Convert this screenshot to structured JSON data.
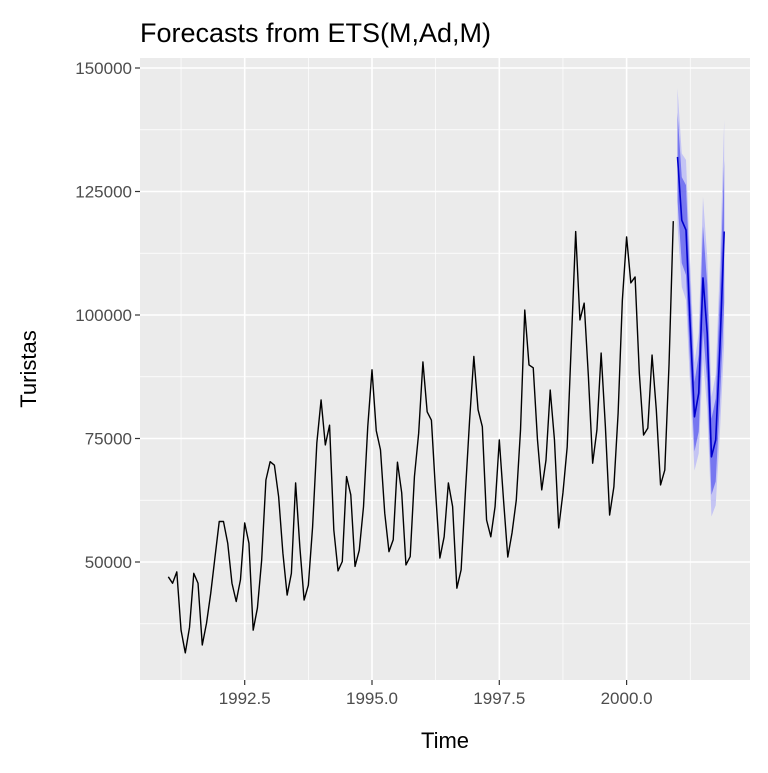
{
  "chart_data": {
    "type": "line",
    "title": "Forecasts from ETS(M,Ad,M)",
    "xlabel": "Time",
    "ylabel": "Turistas",
    "xlim": [
      1990.9,
      2002.05
    ],
    "ylim": [
      27000,
      152000
    ],
    "x_ticks": [
      1992.5,
      1995.0,
      1997.5,
      2000.0
    ],
    "x_tick_labels": [
      "1992.5",
      "1995.0",
      "1997.5",
      "2000.0"
    ],
    "y_ticks": [
      50000,
      75000,
      100000,
      125000,
      150000
    ],
    "y_tick_labels": [
      "50000",
      "75000",
      "100000",
      "125000",
      "150000"
    ],
    "grid": true,
    "colors": {
      "panel": "#ebebeb",
      "history": "#000000",
      "forecast": "#0000cc",
      "band80": "#7777f0",
      "band95": "#c4c4f4"
    },
    "history": {
      "start": 1991.0,
      "frequency": 12,
      "values": [
        47000,
        45700,
        48000,
        36200,
        31600,
        36800,
        47700,
        45700,
        33200,
        37600,
        43700,
        51000,
        58200,
        58200,
        53800,
        45700,
        42000,
        46400,
        57900,
        53800,
        36200,
        40700,
        50400,
        66600,
        70300,
        69600,
        63200,
        51800,
        43300,
        47700,
        66000,
        53000,
        42300,
        45300,
        57100,
        74100,
        82800,
        73700,
        77700,
        56500,
        48200,
        50100,
        67300,
        63600,
        49100,
        52400,
        61200,
        77400,
        88900,
        76600,
        72700,
        59900,
        52100,
        54500,
        70200,
        64000,
        49400,
        51100,
        67300,
        76100,
        90500,
        80400,
        78700,
        64000,
        50800,
        55100,
        66000,
        61200,
        44700,
        48400,
        64000,
        78700,
        91600,
        80800,
        77400,
        58500,
        55100,
        61200,
        74700,
        62500,
        51000,
        55900,
        62500,
        76700,
        101000,
        89900,
        89300,
        74700,
        64600,
        70600,
        84800,
        74700,
        56900,
        64000,
        73300,
        94900,
        116900,
        99000,
        102400,
        87500,
        70000,
        76700,
        92300,
        77400,
        59500,
        65200,
        80100,
        103000,
        115800,
        106500,
        107700,
        88200,
        75700,
        77100,
        91900,
        80800,
        65600,
        68600,
        90000,
        119000
      ]
    },
    "forecast": {
      "start": 2001.0,
      "frequency": 12,
      "mean": [
        132000,
        119200,
        117200,
        97600,
        79400,
        84200,
        107500,
        96300,
        71300,
        74700,
        93600,
        116900
      ],
      "lo80": [
        123000,
        110500,
        108100,
        89500,
        72400,
        76400,
        97000,
        86400,
        63600,
        66300,
        82600,
        102500
      ],
      "hi80": [
        141000,
        127900,
        126300,
        105700,
        86400,
        92000,
        118000,
        106200,
        79000,
        83100,
        104600,
        131300
      ],
      "lo95": [
        118100,
        105700,
        103000,
        85000,
        68500,
        72000,
        91100,
        80800,
        59200,
        61500,
        76300,
        94300
      ],
      "hi95": [
        145900,
        132700,
        131400,
        110200,
        90300,
        96400,
        123900,
        111800,
        83400,
        87900,
        110900,
        139500
      ]
    }
  }
}
